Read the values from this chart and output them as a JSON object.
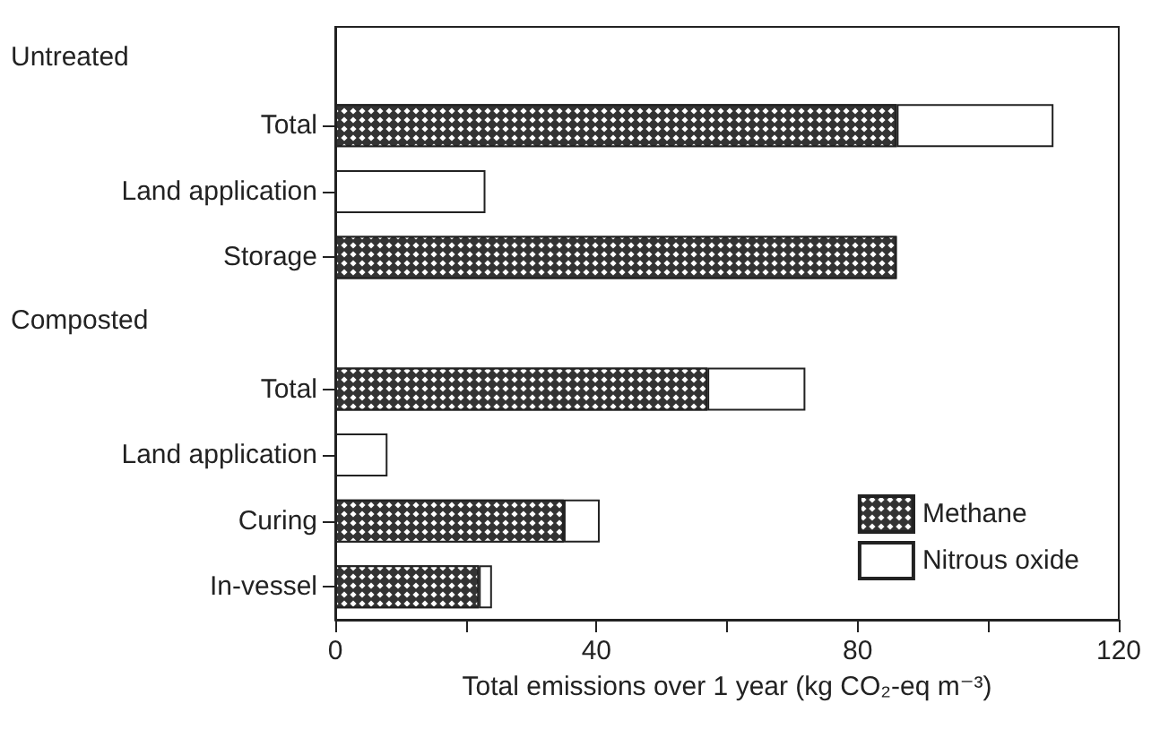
{
  "chart_data": {
    "type": "bar",
    "orientation": "horizontal",
    "stacked": true,
    "xlabel": "Total emissions over 1 year (kg CO₂-eq m⁻³)",
    "categories": [
      null,
      "Total",
      "Land application",
      "Storage",
      null,
      "Total",
      "Land application",
      "Curing",
      "In-vessel"
    ],
    "annotations": [
      "Untreated",
      "Composted"
    ],
    "series": [
      {
        "name": "Methane",
        "color": "#333333",
        "values": [
          null,
          86,
          null,
          86,
          null,
          57,
          null,
          35,
          22
        ]
      },
      {
        "name": "Nitrous oxide",
        "color": "#ffffff",
        "values": [
          null,
          24,
          23,
          null,
          null,
          15,
          8,
          5.5,
          2
        ]
      }
    ],
    "xlim": [
      0,
      120
    ],
    "xticks": [
      0,
      {
        "value": 20,
        "label": null
      },
      40,
      {
        "value": 60,
        "label": null
      },
      80,
      {
        "value": 100,
        "label": null
      },
      120
    ],
    "grid": false,
    "legend": "bottom right"
  }
}
